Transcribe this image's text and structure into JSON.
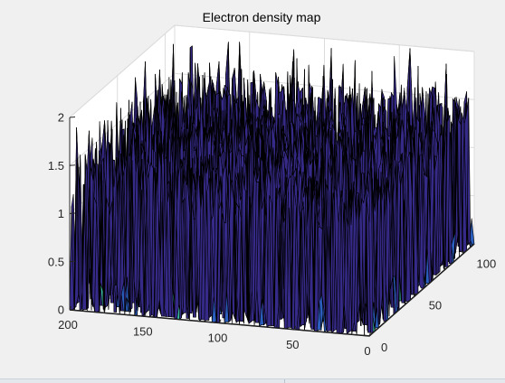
{
  "chart_data": {
    "type": "surface",
    "title": "Electron density map",
    "xlabel": "",
    "ylabel": "",
    "zlabel": "",
    "x_ticks": [
      "0",
      "50",
      "100"
    ],
    "y_ticks": [
      "0",
      "50",
      "100",
      "150",
      "200"
    ],
    "z_ticks": [
      "0",
      "0.5",
      "1",
      "1.5",
      "2"
    ],
    "x_range": [
      0,
      110
    ],
    "y_range": [
      0,
      200
    ],
    "zlim": [
      0,
      2
    ],
    "grid": true,
    "box": true,
    "colormap": "parula",
    "data_summary": {
      "grid_size": [
        100,
        200
      ],
      "baseline_value": 0,
      "typical_spike_range": [
        1.0,
        1.6
      ],
      "max_value": 2.0
    }
  },
  "colors": {
    "background": "#f0f0f0",
    "axes_face": "#ffffff",
    "grid": "#dcdcdc",
    "axis_line": "#262626",
    "edge": "#000000",
    "surface_low": "#352a87",
    "surface_mid": "#2a5fbf",
    "surface_accent": "#38c1a2"
  }
}
